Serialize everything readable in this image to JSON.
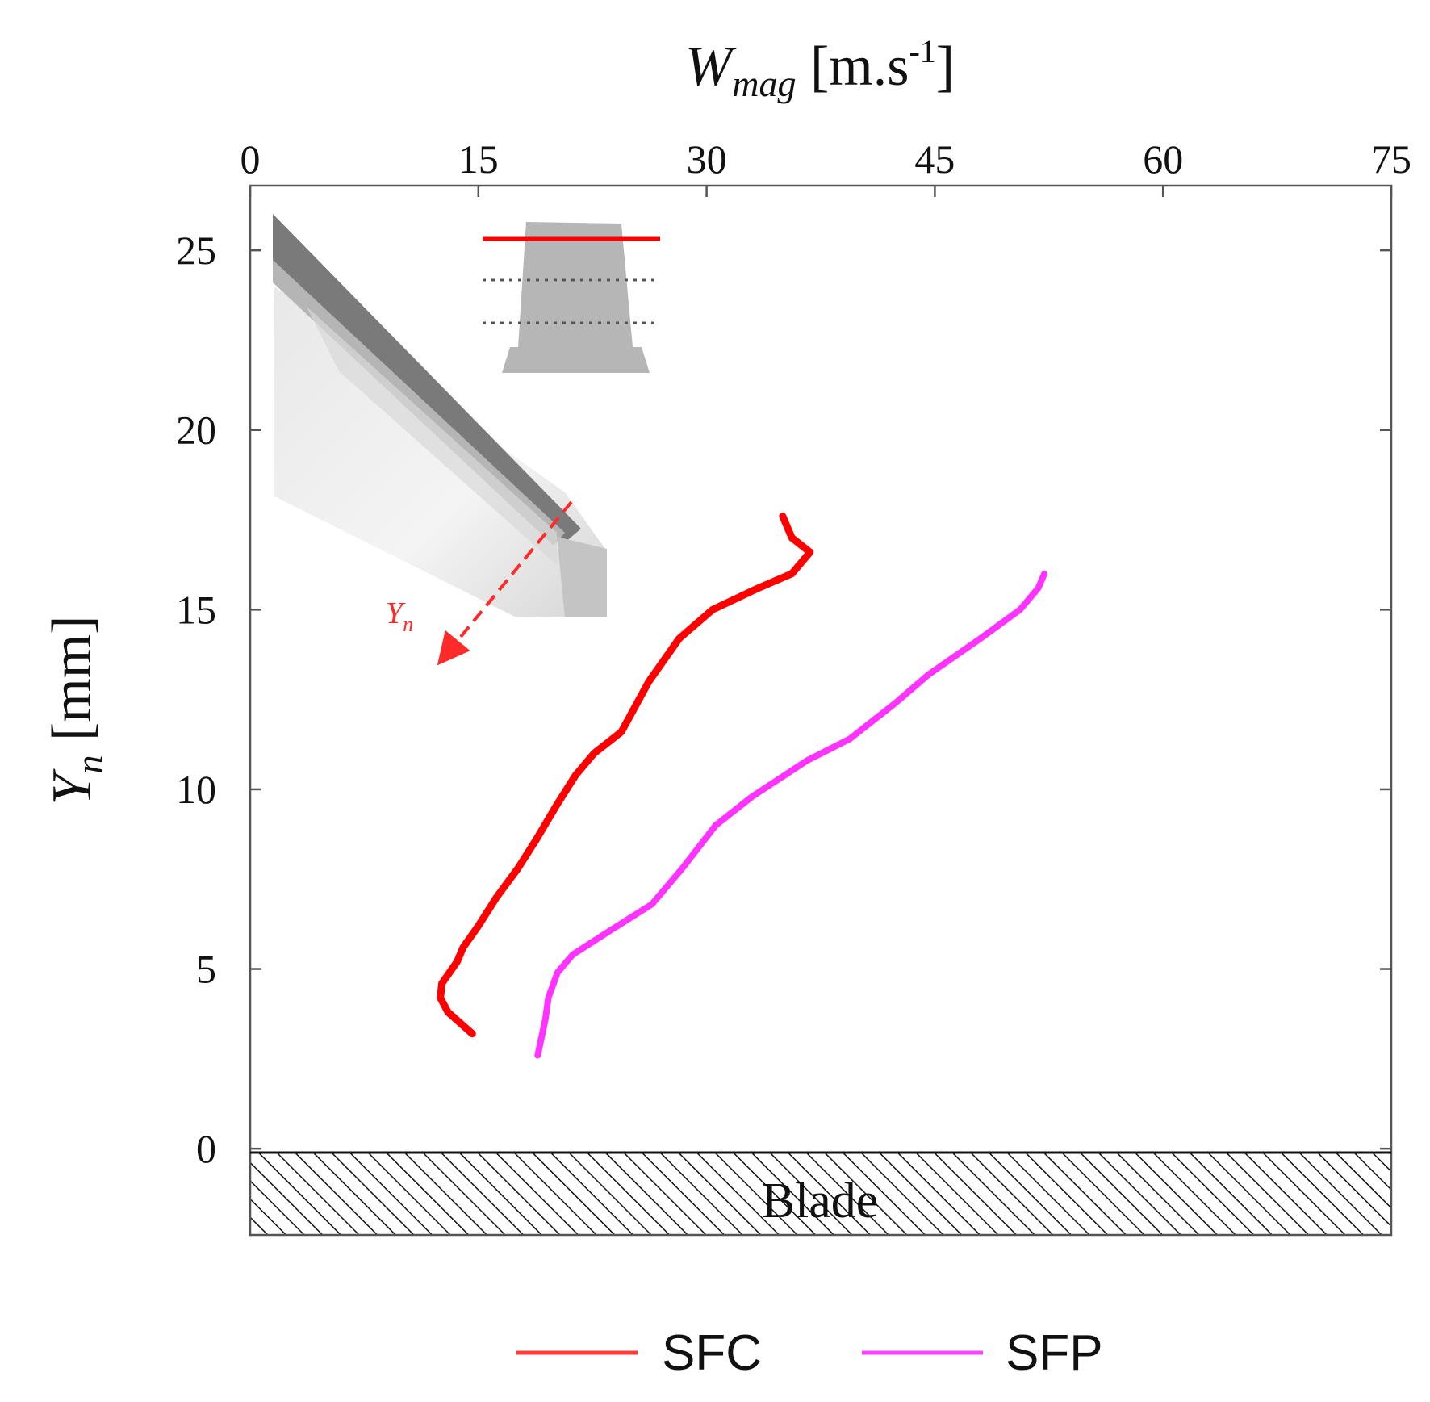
{
  "chart_data": {
    "type": "line",
    "xlabel": {
      "main": "W",
      "sub": "mag",
      "unit_open": " [m.s",
      "unit_sup": "-1",
      "unit_close": "]"
    },
    "ylabel": {
      "main": "Y",
      "sub": "n",
      "unit": " [mm]"
    },
    "xlim": [
      0,
      75
    ],
    "ylim": [
      -2.4,
      26.8
    ],
    "xticks": [
      0,
      15,
      30,
      45,
      60,
      75
    ],
    "yticks": [
      0,
      5,
      10,
      15,
      20,
      25
    ],
    "xtick_labels": [
      "0",
      "15",
      "30",
      "45",
      "60",
      "75"
    ],
    "ytick_labels": [
      "0",
      "5",
      "10",
      "15",
      "20",
      "25"
    ],
    "grid": false,
    "blade": {
      "label": "Blade",
      "y_from": -2.4,
      "y_to": 0
    },
    "legend": {
      "position": "bottom-center",
      "entries": [
        "SFC",
        "SFP"
      ]
    },
    "series": [
      {
        "name": "SFC",
        "color": "#ff0000",
        "points": [
          [
            14.6,
            3.2
          ],
          [
            13.0,
            3.8
          ],
          [
            12.5,
            4.2
          ],
          [
            12.6,
            4.6
          ],
          [
            13.6,
            5.2
          ],
          [
            14.0,
            5.6
          ],
          [
            15.0,
            6.2
          ],
          [
            16.2,
            7.0
          ],
          [
            17.6,
            7.8
          ],
          [
            18.8,
            8.6
          ],
          [
            20.2,
            9.6
          ],
          [
            21.4,
            10.4
          ],
          [
            22.6,
            11.0
          ],
          [
            24.4,
            11.6
          ],
          [
            26.2,
            13.0
          ],
          [
            28.2,
            14.2
          ],
          [
            30.4,
            15.0
          ],
          [
            33.4,
            15.6
          ],
          [
            35.6,
            16.0
          ],
          [
            36.8,
            16.6
          ],
          [
            35.6,
            17.0
          ],
          [
            35.0,
            17.6
          ]
        ]
      },
      {
        "name": "SFP",
        "color": "#ff33ff",
        "points": [
          [
            18.9,
            2.6
          ],
          [
            19.4,
            3.6
          ],
          [
            19.6,
            4.2
          ],
          [
            20.2,
            4.9
          ],
          [
            21.2,
            5.4
          ],
          [
            23.4,
            6.0
          ],
          [
            26.4,
            6.8
          ],
          [
            28.4,
            7.8
          ],
          [
            30.6,
            9.0
          ],
          [
            33.0,
            9.8
          ],
          [
            36.6,
            10.8
          ],
          [
            39.4,
            11.4
          ],
          [
            42.4,
            12.4
          ],
          [
            44.6,
            13.2
          ],
          [
            48.0,
            14.2
          ],
          [
            50.6,
            15.0
          ],
          [
            51.8,
            15.6
          ],
          [
            52.2,
            16.0
          ]
        ]
      }
    ]
  },
  "inset": {
    "axis_label": {
      "main": "Y",
      "sub": "n"
    }
  }
}
